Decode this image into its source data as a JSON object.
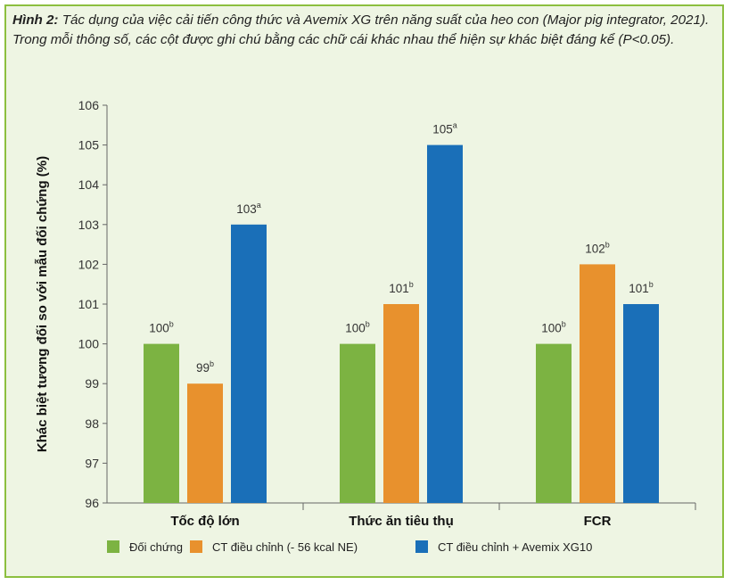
{
  "caption": {
    "prefix": "Hình 2:",
    "text": " Tác dụng của việc cải tiến công thức và Avemix XG trên năng suất của heo con (Major pig integrator, 2021). Trong mỗi thông số, các cột được ghi chú bằng các chữ cái khác nhau thể hiện sự khác biệt đáng kể (P<0.05)."
  },
  "chart_data": {
    "type": "bar",
    "categories": [
      "Tốc độ lớn",
      "Thức ăn tiêu thụ",
      "FCR"
    ],
    "ylabel": "Khác biệt tương đối so với mẫu đối chứng (%)",
    "ylim": [
      96,
      106
    ],
    "yticks": [
      96,
      97,
      98,
      99,
      100,
      101,
      102,
      103,
      104,
      105,
      106
    ],
    "grid": false,
    "legend_position": "bottom",
    "series": [
      {
        "name": "Đối chứng",
        "color": "#7cb342",
        "values": [
          100,
          100,
          100
        ],
        "labels": [
          "100",
          "100",
          "100"
        ],
        "letters": [
          "b",
          "b",
          "b"
        ]
      },
      {
        "name": "CT điều chỉnh (- 56 kcal NE)",
        "color": "#e8912d",
        "values": [
          99,
          101,
          102
        ],
        "labels": [
          "99",
          "101",
          "102"
        ],
        "letters": [
          "b",
          "b",
          "b"
        ]
      },
      {
        "name": "CT điều chỉnh + Avemix XG10",
        "color": "#1a6fb8",
        "values": [
          103,
          105,
          101
        ],
        "labels": [
          "103",
          "105",
          "101"
        ],
        "letters": [
          "a",
          "a",
          "b"
        ]
      }
    ]
  }
}
